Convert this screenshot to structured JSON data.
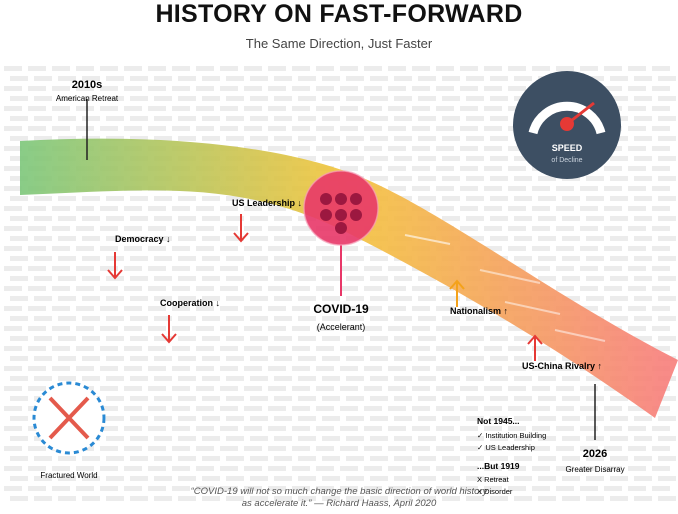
{
  "title": "HISTORY ON FAST-FORWARD",
  "subtitle": "The Same Direction, Just Faster",
  "start": {
    "year": "2010s",
    "caption": "American Retreat"
  },
  "end": {
    "year": "2026",
    "caption": "Greater Disarray"
  },
  "declines": [
    {
      "label": "US Leadership ↓"
    },
    {
      "label": "Democracy ↓"
    },
    {
      "label": "Cooperation ↓"
    }
  ],
  "rises": [
    {
      "label": "Nationalism ↑"
    },
    {
      "label": "US-China Rivalry ↑"
    }
  ],
  "covid": {
    "title": "COVID-19",
    "subtitle": "(Accelerant)"
  },
  "gauge": {
    "title": "SPEED",
    "subtitle": "of Decline"
  },
  "fractured": {
    "caption": "Fractured World"
  },
  "legend": {
    "not_title": "Not 1945...",
    "not_items": [
      "✓ Institution Building",
      "✓ US Leadership"
    ],
    "but_title": "...But 1919",
    "but_items": [
      "X  Retreat",
      "X  Disorder"
    ]
  },
  "quote": {
    "line1": "“COVID-19 will not so much change the basic direction of world history",
    "line2": "as accelerate it.” — Richard Haass, April 2020"
  },
  "colors": {
    "path_start": "#7cc67a",
    "path_mid": "#f3c43a",
    "path_end": "#f77e7a",
    "arrow_down": "#e53935",
    "arrow_up": "#f4a21a",
    "covid": "#e83768",
    "gauge_bg": "#3d4f63",
    "gauge_needle": "#e53935",
    "fracture_ring": "#2a8ad4",
    "fracture_x": "#e45a4c"
  }
}
